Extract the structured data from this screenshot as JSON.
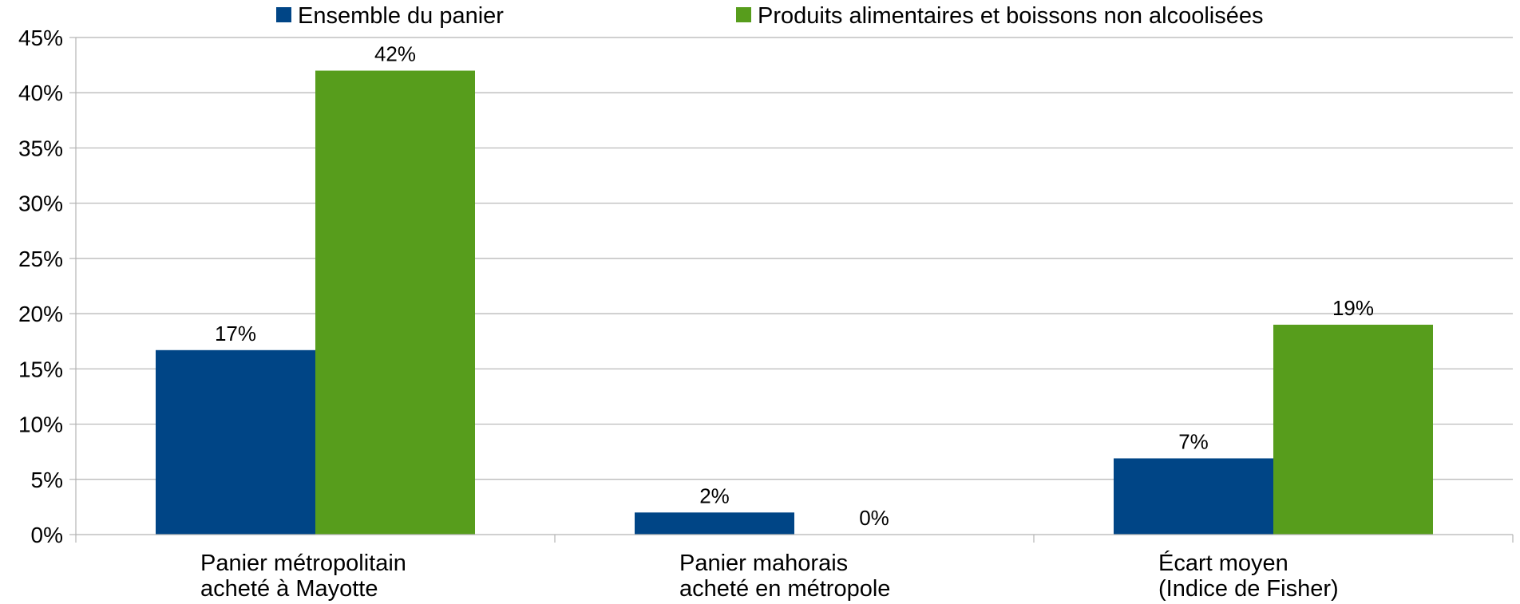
{
  "chart_data": {
    "type": "bar",
    "categories": [
      [
        "Panier métropolitain",
        "acheté à Mayotte"
      ],
      [
        "Panier mahorais",
        "acheté en métropole"
      ],
      [
        "Écart moyen",
        "(Indice de Fisher)"
      ]
    ],
    "series": [
      {
        "name": "Ensemble du panier",
        "color": "#004586",
        "values": [
          16.7,
          2.0,
          6.9
        ],
        "labels": [
          "17%",
          "2%",
          "7%"
        ]
      },
      {
        "name": "Produits alimentaires et boissons non alcoolisées",
        "color": "#579d1c",
        "values": [
          42.0,
          0.0,
          19.0
        ],
        "labels": [
          "42%",
          "0%",
          "19%"
        ]
      }
    ],
    "ylim": [
      0,
      45
    ],
    "yticks": [
      0,
      5,
      10,
      15,
      20,
      25,
      30,
      35,
      40,
      45
    ],
    "ytick_labels": [
      "0%",
      "5%",
      "10%",
      "15%",
      "20%",
      "25%",
      "30%",
      "35%",
      "40%",
      "45%"
    ],
    "grid": true,
    "legend_position": "top"
  }
}
